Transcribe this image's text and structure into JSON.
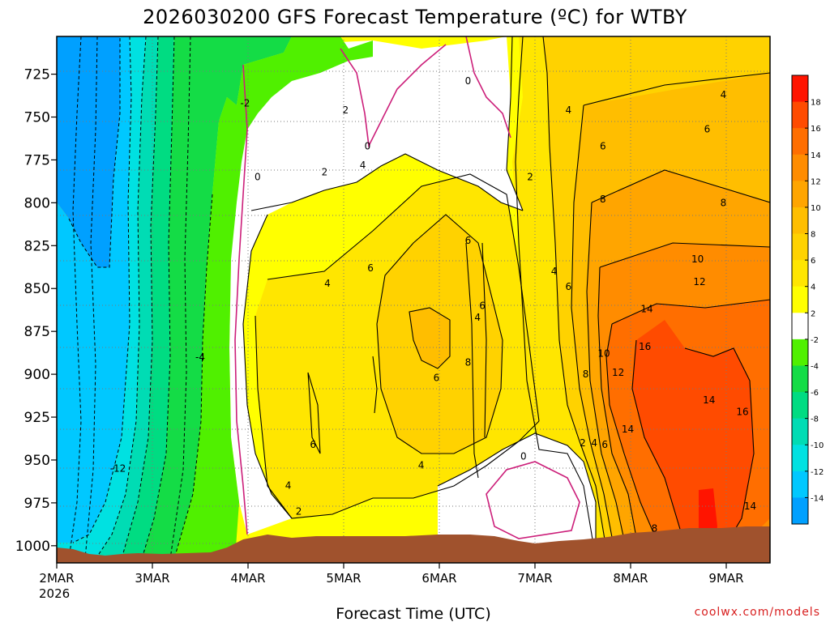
{
  "chart_data": {
    "type": "heatmap",
    "title": "2026030200 GFS Forecast Temperature (ºC) for WTBY",
    "xlabel": "Forecast Time (UTC)",
    "credit": "coolwx.com/models",
    "x_ticks": [
      "2MAR",
      "3MAR",
      "4MAR",
      "5MAR",
      "6MAR",
      "7MAR",
      "8MAR",
      "9MAR"
    ],
    "x_year": "2026",
    "xlim_days": [
      0,
      7.45
    ],
    "y_ticks": [
      725,
      750,
      775,
      800,
      825,
      850,
      875,
      900,
      925,
      950,
      975,
      1000
    ],
    "ylim_hPa": [
      1010,
      703
    ],
    "y_inverted": true,
    "grid": true,
    "colorbar": {
      "labels": [
        18,
        16,
        14,
        12,
        10,
        8,
        6,
        4,
        2,
        -2,
        -4,
        -6,
        -8,
        -10,
        -12,
        -14
      ],
      "colors": [
        "#ff1400",
        "#ff4b00",
        "#ff6e00",
        "#ff8c00",
        "#ffa500",
        "#ffbe00",
        "#ffd200",
        "#ffe600",
        "#ffff00",
        "#ffffff",
        "#50f000",
        "#14dc46",
        "#00dc82",
        "#00dcb4",
        "#00e1e1",
        "#00c8ff",
        "#00a0ff"
      ]
    },
    "contour_labels": [
      {
        "text": "0",
        "x": 2.1,
        "y": 785
      },
      {
        "text": "-2",
        "x": 1.97,
        "y": 742
      },
      {
        "text": "-4",
        "x": 1.5,
        "y": 890
      },
      {
        "text": "-12",
        "x": 0.64,
        "y": 955
      },
      {
        "text": "0",
        "x": 4.3,
        "y": 729
      },
      {
        "text": "0",
        "x": 3.25,
        "y": 767
      },
      {
        "text": "2",
        "x": 3.02,
        "y": 746
      },
      {
        "text": "2",
        "x": 2.8,
        "y": 782
      },
      {
        "text": "2",
        "x": 4.95,
        "y": 785
      },
      {
        "text": "4",
        "x": 3.2,
        "y": 778
      },
      {
        "text": "4",
        "x": 5.35,
        "y": 746
      },
      {
        "text": "4",
        "x": 2.83,
        "y": 847
      },
      {
        "text": "4",
        "x": 5.2,
        "y": 840
      },
      {
        "text": "4",
        "x": 3.81,
        "y": 953
      },
      {
        "text": "4",
        "x": 2.42,
        "y": 965
      },
      {
        "text": "2",
        "x": 2.53,
        "y": 980
      },
      {
        "text": "6",
        "x": 3.28,
        "y": 838
      },
      {
        "text": "6",
        "x": 4.3,
        "y": 822
      },
      {
        "text": "6",
        "x": 4.45,
        "y": 860
      },
      {
        "text": "6",
        "x": 3.97,
        "y": 902
      },
      {
        "text": "6",
        "x": 2.68,
        "y": 941
      },
      {
        "text": "4",
        "x": 4.4,
        "y": 867
      },
      {
        "text": "8",
        "x": 4.3,
        "y": 893
      },
      {
        "text": "6",
        "x": 5.35,
        "y": 849
      },
      {
        "text": "6",
        "x": 5.71,
        "y": 767
      },
      {
        "text": "8",
        "x": 5.71,
        "y": 798
      },
      {
        "text": "8",
        "x": 6.97,
        "y": 800
      },
      {
        "text": "6",
        "x": 6.8,
        "y": 757
      },
      {
        "text": "4",
        "x": 6.97,
        "y": 737
      },
      {
        "text": "10",
        "x": 6.7,
        "y": 833
      },
      {
        "text": "12",
        "x": 6.72,
        "y": 846
      },
      {
        "text": "14",
        "x": 6.17,
        "y": 862
      },
      {
        "text": "16",
        "x": 6.15,
        "y": 884
      },
      {
        "text": "10",
        "x": 5.72,
        "y": 888
      },
      {
        "text": "12",
        "x": 5.87,
        "y": 899
      },
      {
        "text": "8",
        "x": 5.53,
        "y": 900
      },
      {
        "text": "14",
        "x": 6.82,
        "y": 915
      },
      {
        "text": "16",
        "x": 7.17,
        "y": 922
      },
      {
        "text": "14",
        "x": 5.97,
        "y": 932
      },
      {
        "text": "2",
        "x": 5.5,
        "y": 940
      },
      {
        "text": "4",
        "x": 5.62,
        "y": 940
      },
      {
        "text": "6",
        "x": 5.73,
        "y": 941
      },
      {
        "text": "0",
        "x": 4.88,
        "y": 948
      },
      {
        "text": "8",
        "x": 6.25,
        "y": 990
      },
      {
        "text": "14",
        "x": 7.25,
        "y": 977
      }
    ]
  }
}
